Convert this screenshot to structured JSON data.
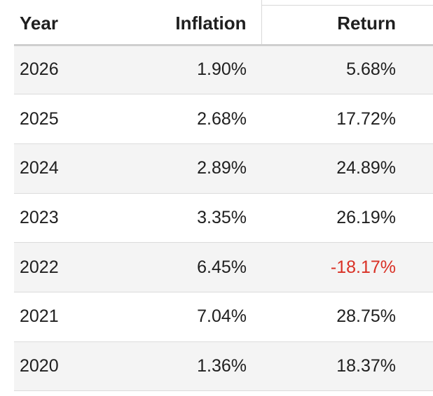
{
  "table": {
    "headers": {
      "year": "Year",
      "inflation": "Inflation",
      "return": "Return"
    },
    "rows": [
      {
        "year": "2026",
        "inflation": "1.90%",
        "return": "5.68%",
        "return_negative": false
      },
      {
        "year": "2025",
        "inflation": "2.68%",
        "return": "17.72%",
        "return_negative": false
      },
      {
        "year": "2024",
        "inflation": "2.89%",
        "return": "24.89%",
        "return_negative": false
      },
      {
        "year": "2023",
        "inflation": "3.35%",
        "return": "26.19%",
        "return_negative": false
      },
      {
        "year": "2022",
        "inflation": "6.45%",
        "return": "-18.17%",
        "return_negative": true
      },
      {
        "year": "2021",
        "inflation": "7.04%",
        "return": "28.75%",
        "return_negative": false
      },
      {
        "year": "2020",
        "inflation": "1.36%",
        "return": "18.37%",
        "return_negative": false
      }
    ]
  },
  "colors": {
    "negative": "#d93025",
    "text": "#1f1f1f",
    "row_shade": "#f4f4f4"
  }
}
